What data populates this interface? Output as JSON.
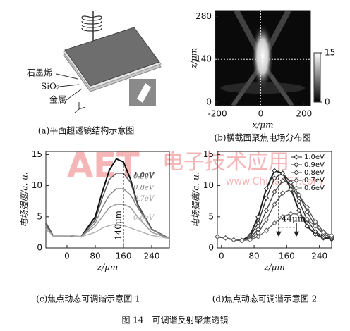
{
  "panel_a": {
    "labels": [
      "石墨烯",
      "SiO₂",
      "金属"
    ],
    "caption": "(a)平面超透镜结构示意图"
  },
  "chart_data": [
    {
      "type": "heatmap",
      "caption": "(b)横截面聚焦电场分布图",
      "xlabel": "x/μm",
      "ylabel": "z/μm",
      "xlim": [
        -210,
        230
      ],
      "xticks": [
        -200,
        0,
        200
      ],
      "ylim": [
        -12,
        300
      ],
      "yticks": [
        0,
        140,
        280
      ],
      "colorbar_lim": [
        0,
        15
      ],
      "colorbar_ticks": [
        0,
        15
      ],
      "crosshair": [
        0,
        140
      ]
    },
    {
      "type": "line",
      "caption": "(c)焦点动态可调谐示意图 1",
      "xlabel": "z/μm",
      "ylabel": "电场强度/a. u.",
      "xlim": [
        -60,
        290
      ],
      "xticks": [
        0,
        80,
        160,
        240
      ],
      "ylim": [
        0,
        15.5
      ],
      "yticks": [
        0,
        5,
        10,
        15
      ],
      "legend": "inline",
      "markers": false,
      "marker_x": 160,
      "annotation": "140μm",
      "x": [
        -60,
        -40,
        0,
        40,
        80,
        100,
        120,
        140,
        160,
        180,
        200,
        240,
        290
      ],
      "series": [
        {
          "name": "1.0eV",
          "color": "#111111",
          "values": [
            4,
            2,
            2,
            1.8,
            5,
            9,
            12.5,
            14.3,
            13.8,
            11,
            7,
            3,
            1.5
          ]
        },
        {
          "name": "0.9eV",
          "color": "#555555",
          "values": [
            4,
            2,
            2,
            1.8,
            4.5,
            8,
            11,
            12,
            12,
            10.5,
            7,
            3,
            1.5
          ]
        },
        {
          "name": "0.8eV",
          "color": "#808080",
          "values": [
            3.5,
            2,
            2,
            1.8,
            4,
            6.5,
            8.5,
            9.5,
            9.5,
            8.5,
            6.5,
            3,
            1.5
          ]
        },
        {
          "name": "0.7eV",
          "color": "#9a9a9a",
          "values": [
            3,
            2,
            2,
            1.8,
            3.5,
            5,
            6.5,
            7,
            7,
            6.5,
            5,
            2.5,
            1.5
          ]
        },
        {
          "name": "0.6eV",
          "color": "#b0b0b0",
          "values": [
            3,
            2,
            2,
            1.8,
            2.5,
            3.2,
            3.6,
            3.8,
            3.6,
            3.2,
            2.8,
            2,
            1.5
          ]
        }
      ]
    },
    {
      "type": "line",
      "caption": "(d)焦点动态可调谐示意图 2",
      "xlabel": "z/μm",
      "ylabel": "电场强度/a. u.",
      "xlim": [
        -10,
        270
      ],
      "xticks": [
        0,
        80,
        160,
        240
      ],
      "ylim": [
        0,
        15.5
      ],
      "yticks": [
        0,
        5,
        10,
        15
      ],
      "legend": "upper right",
      "markers": true,
      "arrows_x": [
        140,
        184
      ],
      "annotation": "44μm",
      "x": [
        -10,
        10,
        30,
        50,
        70,
        90,
        110,
        130,
        150,
        170,
        190,
        210,
        230,
        250,
        270
      ],
      "series": [
        {
          "name": "1.0eV",
          "color": "#222222",
          "values": [
            1.8,
            1.6,
            1.3,
            1.2,
            2,
            5,
            9.5,
            12.4,
            12,
            9.5,
            6,
            3.5,
            2.2,
            1.6,
            1.4
          ]
        },
        {
          "name": "0.9eV",
          "color": "#333333",
          "values": [
            1.8,
            1.6,
            1.3,
            1.2,
            1.8,
            4,
            8,
            11.2,
            12,
            10.5,
            7.5,
            4.5,
            2.6,
            1.8,
            1.5
          ]
        },
        {
          "name": "0.8eV",
          "color": "#444444",
          "values": [
            1.8,
            1.6,
            1.3,
            1.2,
            1.6,
            3,
            6,
            9,
            10.8,
            10.5,
            8.5,
            5.8,
            3.5,
            2.2,
            1.7
          ]
        },
        {
          "name": "0.7eV",
          "color": "#555555",
          "values": [
            1.8,
            1.6,
            1.3,
            1.2,
            1.4,
            2.4,
            4.5,
            7,
            8.8,
            9.4,
            8.5,
            6.5,
            4.2,
            2.6,
            1.9
          ]
        },
        {
          "name": "0.6eV",
          "color": "#666666",
          "values": [
            1.8,
            1.6,
            1.3,
            1.2,
            1.3,
            1.8,
            2.8,
            4,
            5,
            5.5,
            5.4,
            4.6,
            3.5,
            2.5,
            2
          ]
        }
      ]
    }
  ],
  "figure_caption": "图 14　可调谐反射聚焦透镜",
  "watermark": {
    "logo": "AET",
    "text": "电子技术应用",
    "url": "www.ChinaAET.com"
  }
}
